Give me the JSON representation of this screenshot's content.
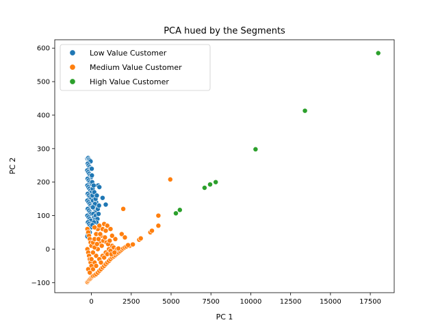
{
  "chart_data": {
    "type": "scatter",
    "title": "PCA hued by the Segments",
    "xlabel": "PC 1",
    "ylabel": "PC 2",
    "xlim": [
      -2300,
      19000
    ],
    "ylim": [
      -130,
      625
    ],
    "xticks": [
      0,
      2500,
      5000,
      7500,
      10000,
      12500,
      15000,
      17500
    ],
    "xtick_labels": [
      "0",
      "2500",
      "5000",
      "7500",
      "10000",
      "12500",
      "15000",
      "17500"
    ],
    "yticks": [
      -100,
      0,
      100,
      200,
      300,
      400,
      500,
      600
    ],
    "ytick_labels": [
      "−100",
      "0",
      "100",
      "200",
      "300",
      "400",
      "500",
      "600"
    ],
    "grid": false,
    "legend_position": "top-left",
    "series": [
      {
        "name": "Low Value Customer",
        "color": "#1f77b4",
        "points": [
          [
            -250,
            270
          ],
          [
            -200,
            272
          ],
          [
            -150,
            268
          ],
          [
            -100,
            265
          ],
          [
            -50,
            262
          ],
          [
            -230,
            255
          ],
          [
            -180,
            250
          ],
          [
            -120,
            245
          ],
          [
            -60,
            240
          ],
          [
            -260,
            235
          ],
          [
            -200,
            230
          ],
          [
            -140,
            225
          ],
          [
            -80,
            220
          ],
          [
            -20,
            215
          ],
          [
            -240,
            210
          ],
          [
            -170,
            205
          ],
          [
            -100,
            200
          ],
          [
            -40,
            195
          ],
          [
            -250,
            190
          ],
          [
            -190,
            185
          ],
          [
            -130,
            180
          ],
          [
            -60,
            175
          ],
          [
            0,
            170
          ],
          [
            -230,
            165
          ],
          [
            -160,
            160
          ],
          [
            -90,
            155
          ],
          [
            -30,
            150
          ],
          [
            -250,
            145
          ],
          [
            -180,
            140
          ],
          [
            -110,
            135
          ],
          [
            -50,
            130
          ],
          [
            10,
            125
          ],
          [
            -230,
            120
          ],
          [
            -150,
            115
          ],
          [
            -80,
            110
          ],
          [
            -20,
            105
          ],
          [
            -250,
            100
          ],
          [
            -180,
            95
          ],
          [
            -110,
            90
          ],
          [
            -40,
            85
          ],
          [
            -220,
            80
          ],
          [
            -150,
            75
          ],
          [
            -90,
            70
          ],
          [
            -20,
            65
          ],
          [
            -240,
            60
          ],
          [
            -170,
            55
          ],
          [
            -100,
            50
          ],
          [
            -220,
            45
          ],
          [
            -160,
            40
          ],
          [
            -250,
            38
          ],
          [
            60,
            160
          ],
          [
            100,
            145
          ],
          [
            150,
            130
          ],
          [
            200,
            120
          ],
          [
            250,
            110
          ],
          [
            300,
            140
          ],
          [
            350,
            125
          ],
          [
            120,
            105
          ],
          [
            180,
            95
          ],
          [
            240,
            88
          ],
          [
            280,
            100
          ],
          [
            220,
            135
          ],
          [
            80,
            180
          ],
          [
            50,
            200
          ],
          [
            30,
            220
          ],
          [
            20,
            240
          ],
          [
            400,
            120
          ],
          [
            450,
            105
          ],
          [
            380,
            90
          ],
          [
            320,
            80
          ],
          [
            420,
            190
          ],
          [
            500,
            185
          ],
          [
            700,
            153
          ],
          [
            900,
            133
          ],
          [
            180,
            170
          ],
          [
            140,
            190
          ],
          [
            260,
            150
          ],
          [
            340,
            160
          ],
          [
            90,
            125
          ],
          [
            160,
            80
          ],
          [
            60,
            72
          ],
          [
            480,
            130
          ]
        ]
      },
      {
        "name": "Medium Value Customer",
        "color": "#ff7f0e",
        "points": [
          [
            -250,
            -98
          ],
          [
            -200,
            -95
          ],
          [
            -150,
            -92
          ],
          [
            -100,
            -90
          ],
          [
            -50,
            -88
          ],
          [
            0,
            -85
          ],
          [
            50,
            -82
          ],
          [
            100,
            -80
          ],
          [
            200,
            -78
          ],
          [
            300,
            -75
          ],
          [
            400,
            -70
          ],
          [
            500,
            -65
          ],
          [
            600,
            -60
          ],
          [
            700,
            -55
          ],
          [
            800,
            -50
          ],
          [
            900,
            -45
          ],
          [
            1000,
            -40
          ],
          [
            1100,
            -35
          ],
          [
            1200,
            -30
          ],
          [
            1300,
            -25
          ],
          [
            1400,
            -22
          ],
          [
            1500,
            -18
          ],
          [
            1600,
            -14
          ],
          [
            1700,
            -10
          ],
          [
            1800,
            -6
          ],
          [
            1900,
            -2
          ],
          [
            2000,
            2
          ],
          [
            2100,
            5
          ],
          [
            2200,
            8
          ],
          [
            2400,
            10
          ],
          [
            2600,
            14
          ],
          [
            3000,
            28
          ],
          [
            3100,
            32
          ],
          [
            3700,
            50
          ],
          [
            3800,
            55
          ],
          [
            4200,
            70
          ],
          [
            4200,
            100
          ],
          [
            2000,
            120
          ],
          [
            4950,
            208
          ],
          [
            1900,
            45
          ],
          [
            2100,
            35
          ],
          [
            1500,
            30
          ],
          [
            -250,
            60
          ],
          [
            -200,
            50
          ],
          [
            -150,
            40
          ],
          [
            -100,
            30
          ],
          [
            -50,
            20
          ],
          [
            0,
            10
          ],
          [
            -250,
            0
          ],
          [
            -200,
            -10
          ],
          [
            -150,
            -20
          ],
          [
            -100,
            -30
          ],
          [
            -50,
            -40
          ],
          [
            0,
            -50
          ],
          [
            100,
            -60
          ],
          [
            200,
            -40
          ],
          [
            300,
            -20
          ],
          [
            400,
            0
          ],
          [
            500,
            20
          ],
          [
            600,
            40
          ],
          [
            700,
            60
          ],
          [
            800,
            75
          ],
          [
            900,
            55
          ],
          [
            1000,
            70
          ],
          [
            1200,
            60
          ],
          [
            1300,
            40
          ],
          [
            100,
            20
          ],
          [
            200,
            30
          ],
          [
            300,
            45
          ],
          [
            400,
            60
          ],
          [
            500,
            70
          ],
          [
            200,
            65
          ],
          [
            300,
            -50
          ],
          [
            500,
            -30
          ],
          [
            700,
            -20
          ],
          [
            900,
            -10
          ],
          [
            1100,
            0
          ],
          [
            1300,
            10
          ],
          [
            600,
            -40
          ],
          [
            800,
            -25
          ],
          [
            1000,
            -15
          ],
          [
            1200,
            -5
          ],
          [
            1400,
            5
          ],
          [
            1600,
            0
          ],
          [
            -200,
            -60
          ],
          [
            -100,
            -70
          ],
          [
            0,
            -30
          ],
          [
            100,
            -10
          ],
          [
            200,
            5
          ],
          [
            350,
            15
          ],
          [
            450,
            30
          ],
          [
            550,
            45
          ],
          [
            650,
            10
          ],
          [
            750,
            25
          ],
          [
            850,
            35
          ],
          [
            950,
            20
          ],
          [
            1050,
            15
          ],
          [
            1150,
            25
          ],
          [
            1250,
            -15
          ],
          [
            1450,
            -10
          ],
          [
            1700,
            2
          ],
          [
            2300,
            12
          ]
        ]
      },
      {
        "name": "High Value Customer",
        "color": "#2ca02c",
        "points": [
          [
            18000,
            585
          ],
          [
            13400,
            413
          ],
          [
            10300,
            298
          ],
          [
            7800,
            200
          ],
          [
            7450,
            193
          ],
          [
            7100,
            183
          ],
          [
            5550,
            117
          ],
          [
            5300,
            107
          ]
        ]
      }
    ]
  }
}
